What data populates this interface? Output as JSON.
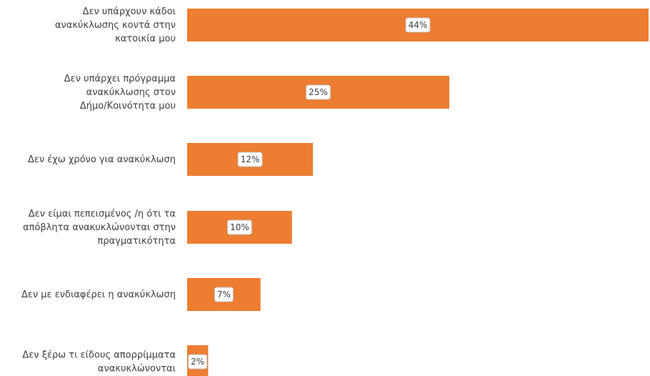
{
  "chart_data": {
    "type": "bar",
    "orientation": "horizontal",
    "categories": [
      [
        "Δεν υπάρχουν κάδοι",
        "ανακύκλωσης κοντά στην",
        "κατοικία μου"
      ],
      [
        "Δεν υπάρχει πρόγραμμα",
        "ανακύκλωσης στον",
        "Δήμο/Κοινότητα μου"
      ],
      [
        "Δεν έχω χρόνο για ανακύκλωση"
      ],
      [
        "Δεν είμαι πεπεισμένος /η ότι τα",
        "απόβλητα ανακυκλώνονται στην",
        "πραγματικότητα"
      ],
      [
        "Δεν με ενδιαφέρει η ανακύκλωση"
      ],
      [
        "Δεν ξέρω τι είδους απορρίμματα",
        "ανακυκλώνονται"
      ]
    ],
    "values": [
      44,
      25,
      12,
      10,
      7,
      2
    ],
    "data_labels": [
      "44%",
      "25%",
      "12%",
      "10%",
      "7%",
      "2%"
    ],
    "xlim": [
      0,
      44
    ],
    "bar_color": "#ED7D31",
    "grid": false,
    "legend": "none"
  }
}
